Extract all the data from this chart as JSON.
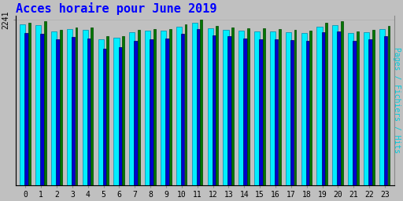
{
  "title": "Acces horaire pour June 2019",
  "hours": [
    0,
    1,
    2,
    3,
    4,
    5,
    6,
    7,
    8,
    9,
    10,
    11,
    12,
    13,
    14,
    15,
    16,
    17,
    18,
    19,
    20,
    21,
    22,
    23
  ],
  "hits": [
    2180,
    2170,
    2090,
    2120,
    2110,
    1980,
    2000,
    2080,
    2100,
    2100,
    2150,
    2200,
    2130,
    2110,
    2100,
    2090,
    2090,
    2080,
    2070,
    2150,
    2170,
    2060,
    2080,
    2120
  ],
  "fichiers": [
    2060,
    2050,
    1980,
    2010,
    1990,
    1850,
    1870,
    1960,
    1980,
    1990,
    2050,
    2120,
    2030,
    2020,
    1990,
    1980,
    1980,
    1970,
    1960,
    2080,
    2090,
    1960,
    1975,
    2020
  ],
  "pages": [
    2200,
    2230,
    2110,
    2140,
    2140,
    2020,
    2020,
    2110,
    2120,
    2120,
    2180,
    2241,
    2160,
    2140,
    2130,
    2130,
    2120,
    2110,
    2100,
    2200,
    2220,
    2090,
    2110,
    2160
  ],
  "ylim": [
    0,
    2300
  ],
  "ytick_val": 2241,
  "ytick_label": "2241",
  "color_hits": "#00EEFF",
  "color_fichiers": "#0000CC",
  "color_pages": "#007700",
  "color_hits_edge": "#0088AA",
  "color_fichiers_edge": "#000066",
  "color_pages_edge": "#004400",
  "background_color": "#C0C0C0",
  "title_color": "#0000FF",
  "ylabel_color": "#00CCDD",
  "ylabel_right": "Pages / Fichiers / Hits",
  "title_fontsize": 11,
  "ylabel_fontsize": 7,
  "tick_fontsize": 7
}
